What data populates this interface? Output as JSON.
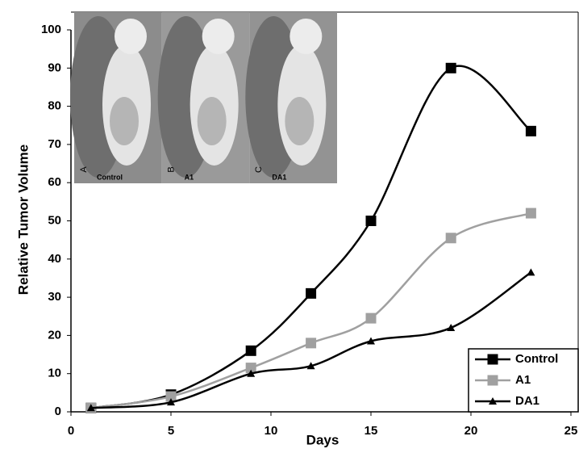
{
  "chart_data": {
    "type": "line",
    "xlabel": "Days",
    "ylabel": "Relative Tumor Volume",
    "x": [
      1,
      5,
      9,
      12,
      15,
      19,
      23
    ],
    "series": [
      {
        "name": "Control",
        "color": "#000000",
        "marker": "square",
        "values": [
          1,
          4.5,
          16,
          31,
          50,
          90,
          73.5
        ]
      },
      {
        "name": "A1",
        "color": "#a0a0a0",
        "marker": "square",
        "values": [
          1,
          4,
          11.5,
          18,
          24.5,
          45.5,
          52
        ]
      },
      {
        "name": "DA1",
        "color": "#000000",
        "marker": "triangle",
        "values": [
          1,
          2.5,
          10,
          12,
          18.5,
          22,
          36.5
        ]
      }
    ],
    "xlim": [
      0,
      25
    ],
    "xticks": [
      0,
      5,
      10,
      15,
      20,
      25
    ],
    "ylim": [
      0,
      100
    ],
    "yticks": [
      0,
      10,
      20,
      30,
      40,
      50,
      60,
      70,
      80,
      90,
      100
    ],
    "legend": "lower right",
    "inset_panels": [
      {
        "letter": "A",
        "label": "Control"
      },
      {
        "letter": "B",
        "label": "A1"
      },
      {
        "letter": "C",
        "label": "DA1"
      }
    ]
  }
}
